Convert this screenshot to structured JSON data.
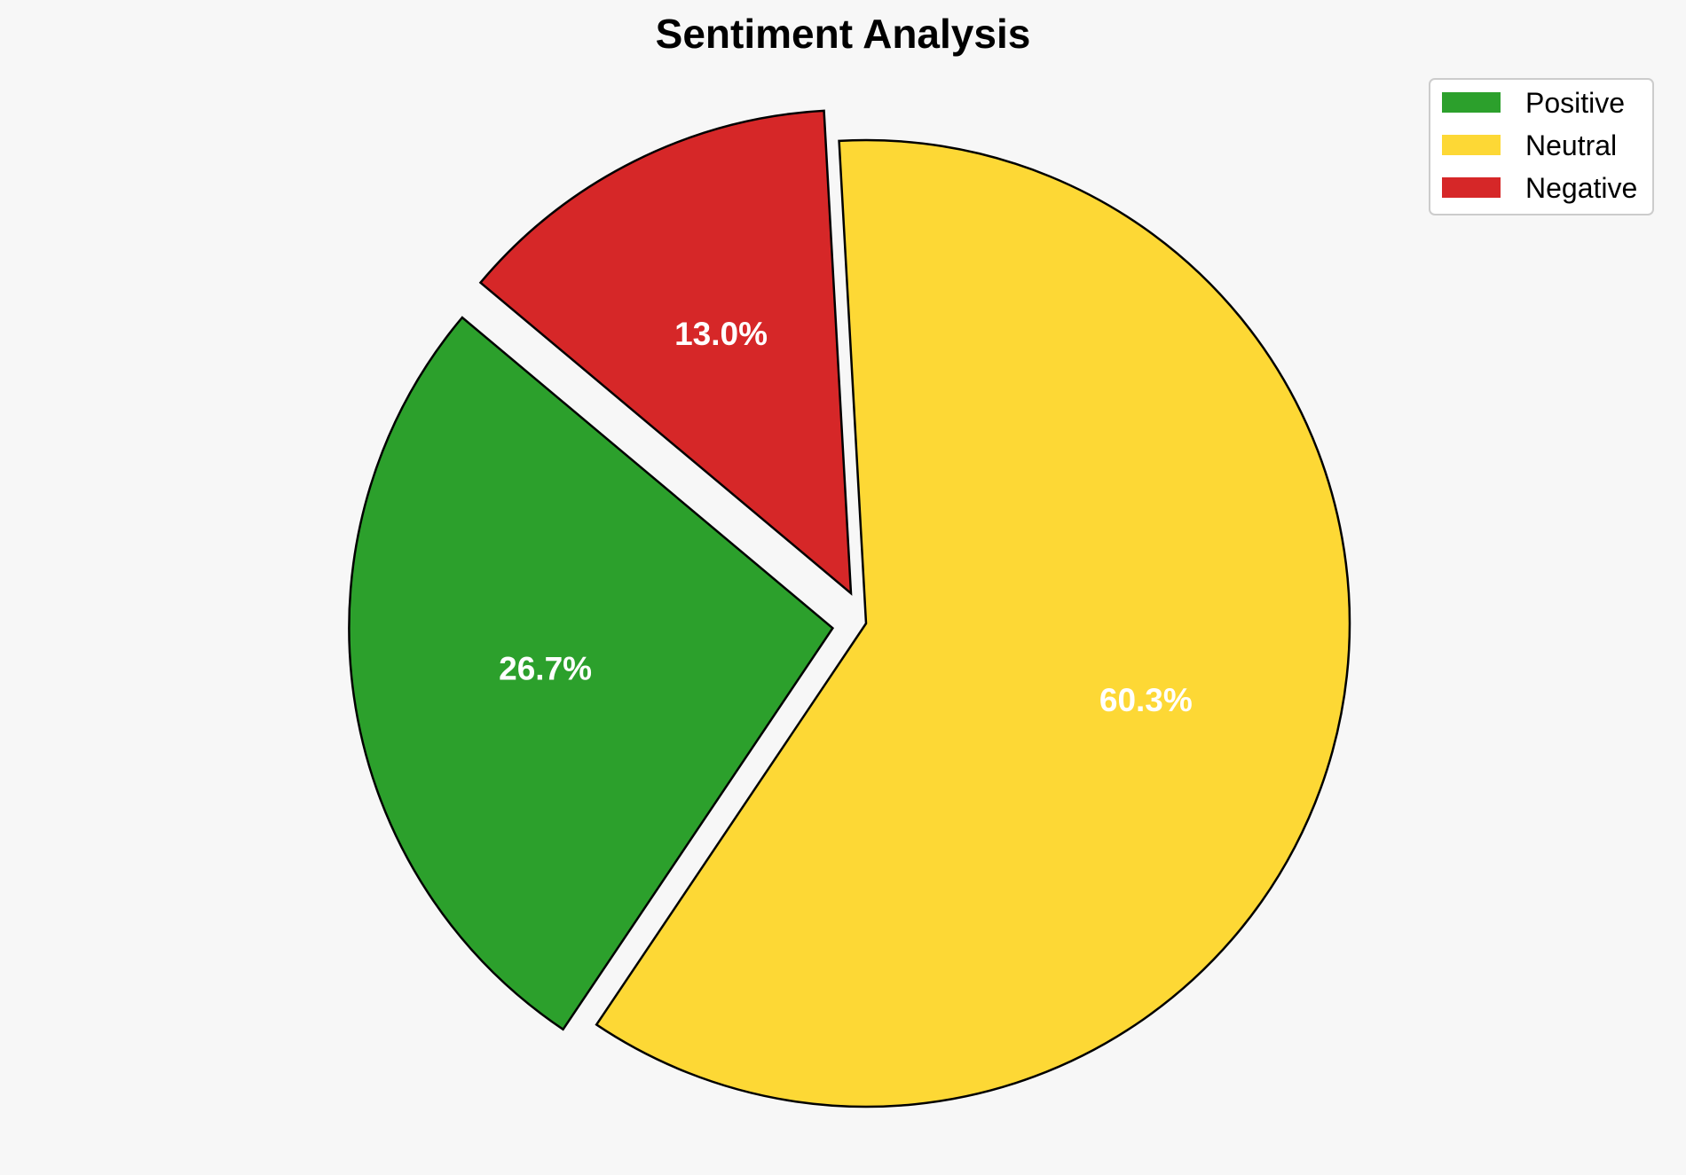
{
  "chart_data": {
    "type": "pie",
    "title": "Sentiment Analysis",
    "categories": [
      "Positive",
      "Neutral",
      "Negative"
    ],
    "values": [
      26.7,
      60.3,
      13.0
    ],
    "labels": [
      "26.7%",
      "60.3%",
      "13.0%"
    ],
    "colors": [
      "#2ca02c",
      "#fdd835",
      "#d62728"
    ],
    "exploded": [
      true,
      false,
      true
    ],
    "legend_position": "top-right",
    "edge_color": "#000000"
  }
}
